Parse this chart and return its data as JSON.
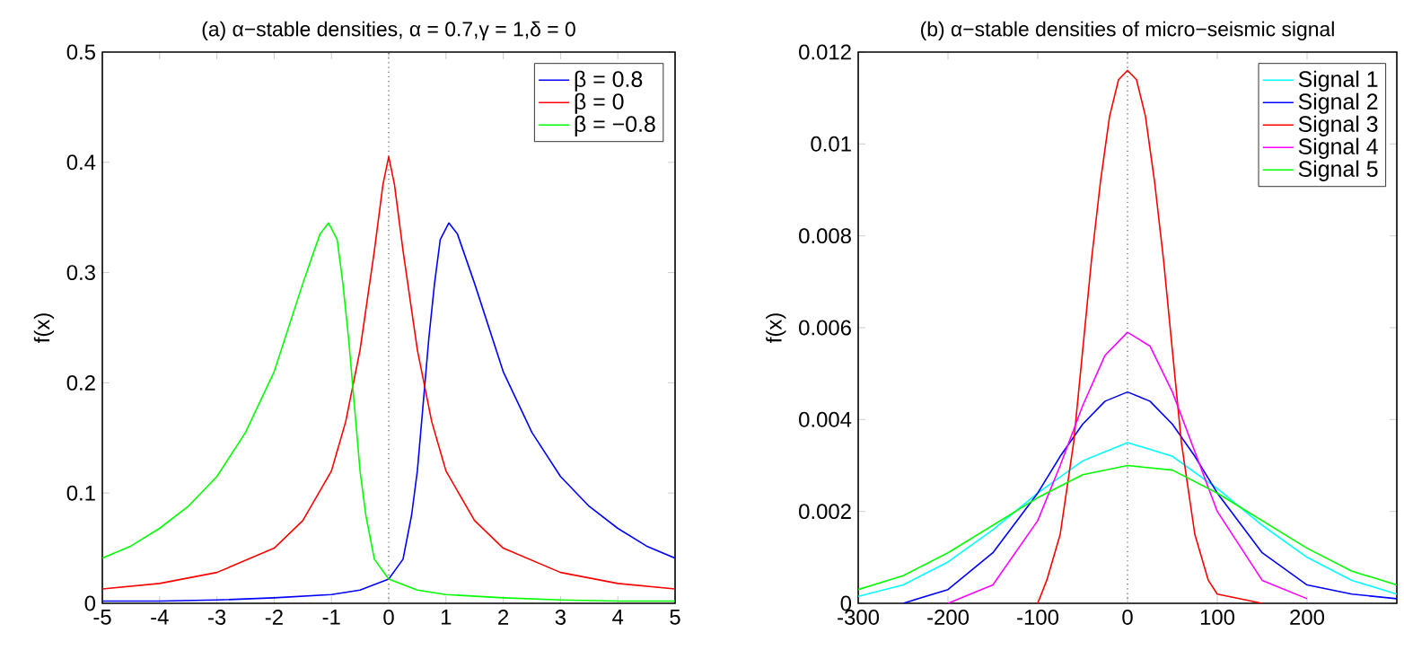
{
  "chart_data": [
    {
      "type": "line",
      "title": "(a) α−stable densities, α = 0.7,γ = 1,δ = 0",
      "ylabel": "f(x)",
      "xlim": [
        -5,
        5
      ],
      "ylim": [
        0,
        0.5
      ],
      "xticks": [
        -5,
        -4,
        -3,
        -2,
        -1,
        0,
        1,
        2,
        3,
        4,
        5
      ],
      "yticks": [
        0,
        0.1,
        0.2,
        0.3,
        0.4,
        0.5
      ],
      "legend": "top right",
      "line_style": "solid",
      "ref_lines": [
        {
          "axis": "x",
          "value": 0,
          "line_style": "dotted",
          "color": "#555555"
        }
      ],
      "series": [
        {
          "name": "β = 0.8",
          "color": "#0000ff",
          "x": [
            -5,
            -4,
            -3,
            -2,
            -1,
            -0.5,
            0,
            0.25,
            0.4,
            0.5,
            0.6,
            0.7,
            0.8,
            0.9,
            1.05,
            1.2,
            1.5,
            2,
            2.5,
            3,
            3.5,
            4,
            4.5,
            5
          ],
          "values": [
            0.002,
            0.002,
            0.003,
            0.005,
            0.008,
            0.012,
            0.022,
            0.04,
            0.08,
            0.12,
            0.18,
            0.24,
            0.29,
            0.33,
            0.345,
            0.335,
            0.29,
            0.21,
            0.155,
            0.115,
            0.088,
            0.068,
            0.052,
            0.041
          ]
        },
        {
          "name": "β = 0",
          "color": "#ff0000",
          "x": [
            -5,
            -4,
            -3,
            -2,
            -1.5,
            -1,
            -0.75,
            -0.5,
            -0.25,
            -0.1,
            0,
            0.1,
            0.25,
            0.5,
            0.75,
            1,
            1.5,
            2,
            3,
            4,
            5
          ],
          "values": [
            0.013,
            0.018,
            0.028,
            0.05,
            0.075,
            0.12,
            0.165,
            0.23,
            0.32,
            0.38,
            0.405,
            0.38,
            0.32,
            0.23,
            0.165,
            0.12,
            0.075,
            0.05,
            0.028,
            0.018,
            0.013
          ]
        },
        {
          "name": "β = −0.8",
          "color": "#00ff00",
          "x": [
            -5,
            -4.5,
            -4,
            -3.5,
            -3,
            -2.5,
            -2,
            -1.5,
            -1.2,
            -1.05,
            -0.9,
            -0.8,
            -0.7,
            -0.6,
            -0.5,
            -0.4,
            -0.25,
            0,
            0.5,
            1,
            2,
            3,
            4,
            5
          ],
          "values": [
            0.041,
            0.052,
            0.068,
            0.088,
            0.115,
            0.155,
            0.21,
            0.29,
            0.335,
            0.345,
            0.33,
            0.29,
            0.24,
            0.18,
            0.12,
            0.08,
            0.04,
            0.022,
            0.012,
            0.008,
            0.005,
            0.003,
            0.002,
            0.002
          ]
        }
      ]
    },
    {
      "type": "line",
      "title": "(b) α−stable densities of micro−seismic signal",
      "ylabel": "f(x)",
      "xlim": [
        -300,
        300
      ],
      "ylim": [
        0,
        0.012
      ],
      "xticks": [
        -300,
        -200,
        -100,
        0,
        100,
        200
      ],
      "yticks": [
        0,
        0.002,
        0.004,
        0.006,
        0.008,
        0.01,
        0.012
      ],
      "legend": "top right",
      "line_style": "solid",
      "ref_lines": [
        {
          "axis": "x",
          "value": 0,
          "line_style": "dotted",
          "color": "#555555"
        }
      ],
      "series": [
        {
          "name": "Signal 1",
          "color": "#00ffff",
          "x": [
            -300,
            -250,
            -200,
            -150,
            -100,
            -50,
            0,
            50,
            100,
            150,
            200,
            250,
            300
          ],
          "values": [
            0.00015,
            0.0004,
            0.0009,
            0.0016,
            0.0024,
            0.0031,
            0.0035,
            0.0032,
            0.0025,
            0.0017,
            0.001,
            0.0005,
            0.0002
          ]
        },
        {
          "name": "Signal 2",
          "color": "#0000ff",
          "x": [
            -250,
            -200,
            -150,
            -100,
            -75,
            -50,
            -25,
            0,
            25,
            50,
            75,
            100,
            150,
            200,
            250,
            300
          ],
          "values": [
            0,
            0.0003,
            0.0011,
            0.0024,
            0.0032,
            0.0039,
            0.0044,
            0.0046,
            0.0044,
            0.0039,
            0.0032,
            0.0024,
            0.0011,
            0.0004,
            0.0002,
            0.0001
          ]
        },
        {
          "name": "Signal 3",
          "color": "#ff0000",
          "x": [
            -100,
            -90,
            -75,
            -60,
            -50,
            -40,
            -30,
            -20,
            -10,
            0,
            10,
            20,
            30,
            40,
            50,
            60,
            75,
            90,
            100,
            150
          ],
          "values": [
            0,
            0.0005,
            0.0015,
            0.0035,
            0.0055,
            0.0075,
            0.0092,
            0.0106,
            0.0114,
            0.0116,
            0.0114,
            0.0106,
            0.0092,
            0.0075,
            0.0055,
            0.0035,
            0.0015,
            0.0005,
            0.0002,
            0
          ]
        },
        {
          "name": "Signal 4",
          "color": "#ff00ff",
          "x": [
            -200,
            -150,
            -100,
            -75,
            -50,
            -25,
            0,
            25,
            50,
            75,
            100,
            150,
            200
          ],
          "values": [
            0,
            0.0004,
            0.0018,
            0.003,
            0.0043,
            0.0054,
            0.0059,
            0.0056,
            0.0046,
            0.0033,
            0.002,
            0.0005,
            0.0001
          ]
        },
        {
          "name": "Signal 5",
          "color": "#00ff00",
          "x": [
            -300,
            -250,
            -200,
            -150,
            -100,
            -50,
            0,
            50,
            100,
            150,
            200,
            250,
            300
          ],
          "values": [
            0.0003,
            0.0006,
            0.0011,
            0.0017,
            0.0023,
            0.0028,
            0.003,
            0.0029,
            0.0024,
            0.0018,
            0.0012,
            0.0007,
            0.0004
          ]
        }
      ]
    }
  ]
}
